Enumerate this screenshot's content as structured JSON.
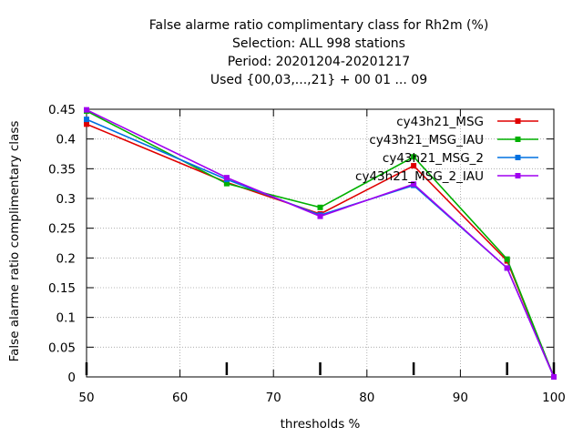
{
  "chart_data": {
    "type": "line",
    "title_lines": [
      "False alarme ratio complimentary class  for Rh2m (%)",
      "Selection: ALL    998 stations",
      "Period: 20201204-20201217",
      "Used {00,03,...,21} + 00 01 ... 09"
    ],
    "xlabel": "thresholds %",
    "ylabel": "False alarme ratio complimentary class",
    "xlim": [
      50,
      100
    ],
    "ylim": [
      0,
      0.45
    ],
    "grid": true,
    "legend_position": "top-right",
    "xticks": [
      50,
      60,
      70,
      80,
      90,
      100
    ],
    "xtick_labels": [
      "50",
      "60",
      "70",
      "80",
      "90",
      "100"
    ],
    "yticks": [
      0,
      0.05,
      0.1,
      0.15,
      0.2,
      0.25,
      0.3,
      0.35,
      0.4,
      0.45
    ],
    "ytick_labels": [
      "0",
      "0.05",
      "0.1",
      "0.15",
      "0.2",
      "0.25",
      "0.3",
      "0.35",
      "0.4",
      "0.45"
    ],
    "x": [
      50,
      65,
      75,
      85,
      95,
      100
    ],
    "series": [
      {
        "name": "cy43h21_MSG",
        "color": "#e00000",
        "values": [
          0.425,
          0.327,
          0.274,
          0.355,
          0.195,
          0.0
        ]
      },
      {
        "name": "cy43h21_MSG_IAU",
        "color": "#00b000",
        "values": [
          0.447,
          0.325,
          0.285,
          0.37,
          0.198,
          0.0
        ]
      },
      {
        "name": "cy43h21_MSG_2",
        "color": "#0070e0",
        "values": [
          0.433,
          0.332,
          0.272,
          0.322,
          0.183,
          0.0
        ]
      },
      {
        "name": "cy43h21_MSG_2_IAU",
        "color": "#a000f0",
        "values": [
          0.449,
          0.335,
          0.27,
          0.324,
          0.183,
          0.0
        ]
      }
    ]
  }
}
